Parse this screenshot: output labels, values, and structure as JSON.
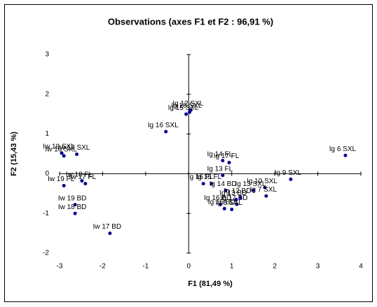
{
  "chart_data": {
    "type": "scatter",
    "title": "Observations (axes F1 et F2 : 96,91 %)",
    "x_label": "F1 (81,49 %)",
    "y_label": "F2 (15,43 %)",
    "labels": [
      "Ig 6 SXL",
      "Ig 12 SXL",
      "Ig 15 SXL",
      "Ig 18 SXL",
      "Ig 16 SXL",
      "Iw 19 SXL",
      "Iw 17 SXL",
      "Iw 16 SXL",
      "Iw 19 FL",
      "Iw 18 FL",
      "Iw 17 FL",
      "Iw 19 BD",
      "Iw 18 BD",
      "Iw 17 BD",
      "Ig 14 FL",
      "Ig 17 FL",
      "Ig 13 FL",
      "Ig 9 SXL",
      "Ig 16 FL",
      "Ig 15 FL",
      "Ig 14 BD",
      "Ig 13 SXL",
      "Ig 10 SXL",
      "Ig 17 BD",
      "Ig 16 BD",
      "Ig 7 SXL",
      "Ig 8 SXL",
      "Ig 15 BD",
      "Ig 12 BD",
      "Ig 13 BD"
    ],
    "x": [
      3.64,
      0.05,
      -0.06,
      0.02,
      -0.53,
      -2.95,
      -2.6,
      -2.9,
      -2.9,
      -2.48,
      -2.4,
      -2.64,
      -2.64,
      -1.83,
      0.79,
      0.94,
      0.79,
      2.37,
      0.34,
      0.53,
      0.86,
      1.5,
      1.77,
      1.12,
      0.74,
      1.8,
      1.0,
      0.83,
      1.2,
      1.1
    ],
    "values": [
      0.46,
      1.6,
      1.5,
      1.55,
      1.06,
      0.52,
      0.49,
      0.45,
      -0.3,
      -0.18,
      -0.25,
      -0.78,
      -1.0,
      -1.5,
      0.33,
      0.28,
      -0.04,
      -0.14,
      -0.25,
      -0.25,
      -0.42,
      -0.42,
      -0.35,
      -0.77,
      -0.77,
      -0.56,
      -0.9,
      -0.88,
      -0.6,
      -0.65
    ],
    "color": "#00008b",
    "xlim": [
      -3,
      4
    ],
    "xticks": [
      -3,
      -2,
      -1,
      0,
      1,
      2,
      3,
      4
    ],
    "ylim": [
      -2,
      3
    ],
    "yticks": [
      -2,
      -1,
      0,
      1,
      2,
      3
    ]
  }
}
